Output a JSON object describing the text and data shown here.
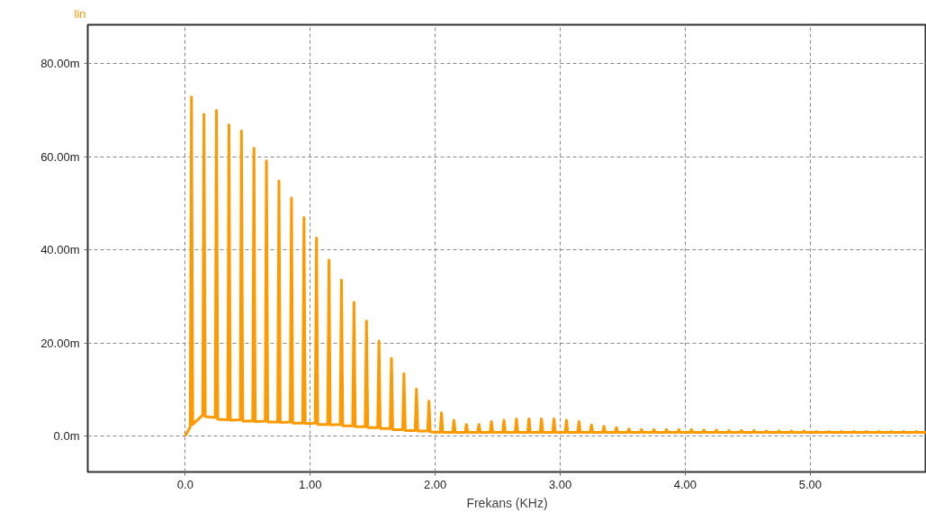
{
  "chart_data": {
    "type": "line",
    "xlabel": "Frekans (KHz)",
    "xlim": [
      -0.78,
      5.93
    ],
    "ylim": [
      -7.7,
      88.3
    ],
    "xticks": [
      {
        "value": 0,
        "label": "0.0"
      },
      {
        "value": 1,
        "label": "1.00"
      },
      {
        "value": 2,
        "label": "2.00"
      },
      {
        "value": 3,
        "label": "3.00"
      },
      {
        "value": 4,
        "label": "4.00"
      },
      {
        "value": 5,
        "label": "5.00"
      }
    ],
    "yticks": [
      {
        "value": 0,
        "label": "0.0m"
      },
      {
        "value": 20,
        "label": "20.00m"
      },
      {
        "value": 40,
        "label": "40.00m"
      },
      {
        "value": 60,
        "label": "60.00m"
      },
      {
        "value": 80,
        "label": "80.00m"
      }
    ],
    "grid": true,
    "line_style": "solid",
    "marker": "none",
    "x": [
      0.0,
      0.04,
      0.05,
      0.06,
      0.14,
      0.15,
      0.16,
      0.24,
      0.25,
      0.26,
      0.34,
      0.35,
      0.36,
      0.44,
      0.45,
      0.46,
      0.54,
      0.55,
      0.56,
      0.64,
      0.65,
      0.66,
      0.74,
      0.75,
      0.76,
      0.84,
      0.85,
      0.86,
      0.94,
      0.95,
      0.96,
      1.04,
      1.05,
      1.06,
      1.14,
      1.15,
      1.16,
      1.24,
      1.25,
      1.26,
      1.34,
      1.35,
      1.36,
      1.44,
      1.45,
      1.46,
      1.54,
      1.55,
      1.56,
      1.64,
      1.65,
      1.66,
      1.74,
      1.75,
      1.76,
      1.84,
      1.85,
      1.86,
      1.94,
      1.95,
      1.96,
      2.04,
      2.05,
      2.06,
      2.14,
      2.15,
      2.16,
      2.24,
      2.25,
      2.26,
      2.34,
      2.35,
      2.36,
      2.44,
      2.45,
      2.46,
      2.54,
      2.55,
      2.56,
      2.64,
      2.65,
      2.66,
      2.74,
      2.75,
      2.76,
      2.84,
      2.85,
      2.86,
      2.94,
      2.95,
      2.96,
      3.04,
      3.05,
      3.06,
      3.14,
      3.15,
      3.16,
      3.24,
      3.25,
      3.26,
      3.34,
      3.35,
      3.36,
      3.44,
      3.45,
      3.46,
      3.54,
      3.55,
      3.56,
      3.64,
      3.65,
      3.66,
      3.74,
      3.75,
      3.76,
      3.84,
      3.85,
      3.86,
      3.94,
      3.95,
      3.96,
      4.04,
      4.05,
      4.06,
      4.14,
      4.15,
      4.16,
      4.24,
      4.25,
      4.26,
      4.34,
      4.35,
      4.36,
      4.44,
      4.45,
      4.46,
      4.54,
      4.55,
      4.56,
      4.64,
      4.65,
      4.66,
      4.74,
      4.75,
      4.76,
      4.84,
      4.85,
      4.86,
      4.94,
      4.95,
      4.96,
      5.04,
      5.05,
      5.06,
      5.14,
      5.15,
      5.16,
      5.24,
      5.25,
      5.26,
      5.34,
      5.35,
      5.36,
      5.44,
      5.45,
      5.46,
      5.54,
      5.55,
      5.56,
      5.64,
      5.65,
      5.66,
      5.74,
      5.75,
      5.76,
      5.84,
      5.85,
      5.86,
      5.93
    ],
    "series": [
      {
        "name": "lin",
        "color": "#ff9900",
        "values": [
          0.0,
          2.0,
          72.8,
          2.5,
          4.5,
          69.1,
          4.2,
          4.0,
          69.9,
          3.6,
          3.5,
          66.8,
          3.4,
          3.5,
          65.5,
          3.2,
          3.2,
          61.8,
          3.1,
          3.2,
          59.1,
          3.0,
          3.0,
          54.8,
          2.9,
          3.0,
          51.1,
          2.8,
          2.8,
          46.9,
          2.7,
          2.8,
          42.5,
          2.5,
          2.5,
          37.8,
          2.4,
          2.5,
          33.5,
          2.2,
          2.2,
          28.7,
          2.0,
          2.0,
          24.7,
          1.8,
          1.8,
          20.4,
          1.6,
          1.6,
          16.7,
          1.4,
          1.4,
          13.4,
          1.2,
          1.2,
          10.1,
          1.1,
          1.1,
          7.5,
          0.9,
          0.8,
          5.0,
          0.8,
          0.8,
          3.4,
          0.8,
          0.8,
          2.5,
          0.8,
          0.8,
          2.5,
          0.8,
          0.8,
          3.1,
          0.8,
          0.8,
          3.4,
          0.8,
          0.8,
          3.7,
          0.8,
          0.8,
          3.7,
          0.8,
          0.8,
          3.7,
          0.8,
          0.8,
          3.7,
          0.8,
          0.8,
          3.4,
          0.8,
          0.8,
          3.1,
          0.8,
          0.8,
          2.4,
          0.8,
          0.8,
          2.1,
          0.8,
          0.8,
          1.8,
          0.8,
          0.8,
          1.5,
          0.8,
          0.8,
          1.4,
          0.8,
          0.8,
          1.4,
          0.8,
          0.8,
          1.4,
          0.8,
          0.8,
          1.4,
          0.8,
          0.8,
          1.4,
          0.8,
          0.8,
          1.3,
          0.8,
          0.8,
          1.3,
          0.8,
          0.8,
          1.2,
          0.8,
          0.8,
          1.2,
          0.8,
          0.8,
          1.2,
          0.8,
          0.8,
          1.1,
          0.8,
          0.8,
          1.1,
          0.8,
          0.8,
          1.1,
          0.8,
          0.8,
          1.1,
          0.8,
          0.8,
          1.0,
          0.8,
          0.8,
          1.0,
          0.8,
          0.8,
          1.0,
          0.8,
          0.8,
          1.0,
          0.8,
          0.8,
          1.0,
          0.8,
          0.8,
          1.0,
          0.8,
          0.8,
          1.0,
          0.8,
          0.8,
          1.0,
          0.8,
          0.8,
          1.0,
          0.8,
          0.8
        ]
      }
    ]
  }
}
